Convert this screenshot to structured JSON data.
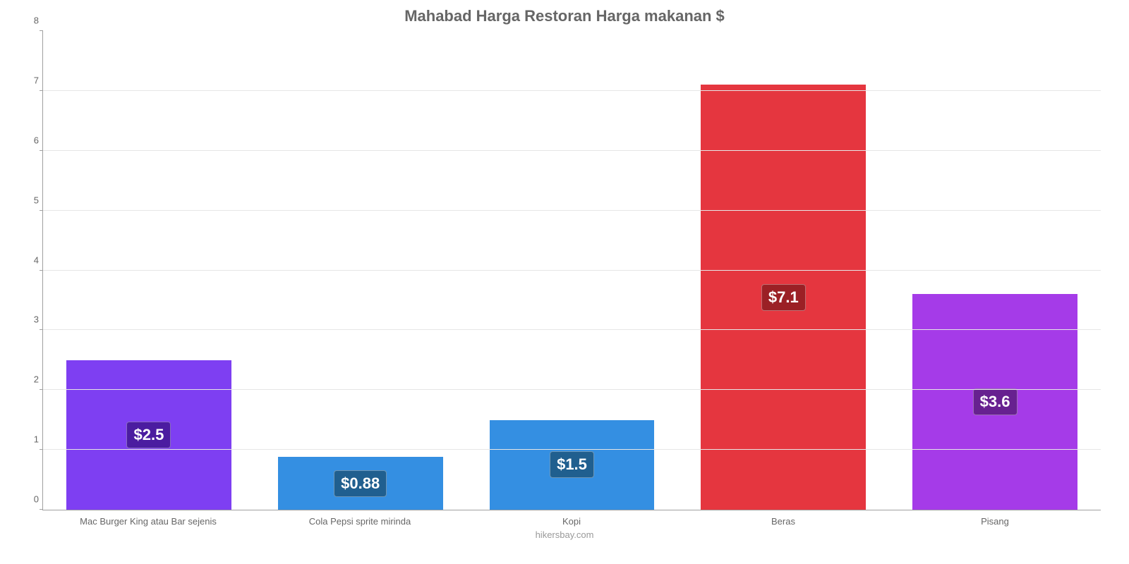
{
  "chart": {
    "type": "bar",
    "title": "Mahabad Harga Restoran Harga makanan $",
    "title_fontsize": 22,
    "title_color": "#666666",
    "attribution": "hikersbay.com",
    "attribution_fontsize": 13,
    "attribution_color": "#999999",
    "background_color": "#ffffff",
    "grid_color": "#e6e6e6",
    "axis_color": "#a0a0a0",
    "tick_label_color": "#666666",
    "tick_label_fontsize": 13,
    "x_label_fontsize": 13,
    "ylim": [
      0,
      8
    ],
    "ytick_step": 1,
    "bar_width_pct": 78,
    "value_label_fontsize": 22,
    "categories": [
      "Mac Burger King atau Bar sejenis",
      "Cola Pepsi sprite mirinda",
      "Kopi",
      "Beras",
      "Pisang"
    ],
    "values": [
      2.5,
      0.88,
      1.5,
      7.1,
      3.6
    ],
    "value_labels": [
      "$2.5",
      "$0.88",
      "$1.5",
      "$7.1",
      "$3.6"
    ],
    "bar_colors": [
      "#7e3ff2",
      "#348fe2",
      "#348fe2",
      "#e5363f",
      "#a53be8"
    ],
    "badge_colors": [
      "#4b1ca0",
      "#205f8f",
      "#205f8f",
      "#9b2025",
      "#672190"
    ]
  }
}
